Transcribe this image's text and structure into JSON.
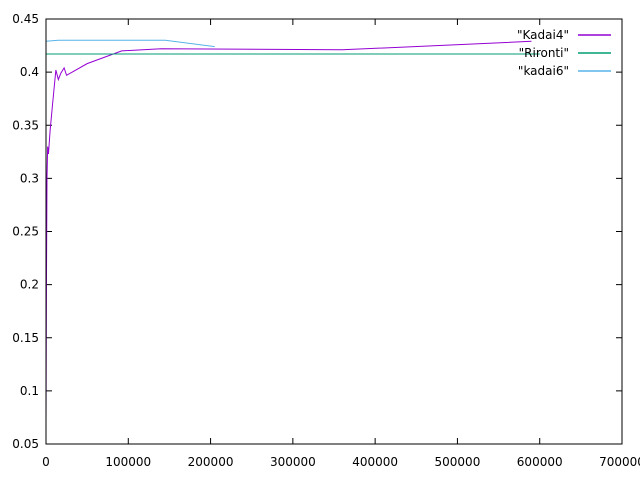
{
  "chart_data": {
    "type": "line",
    "title": "",
    "xlabel": "",
    "ylabel": "",
    "xlim": [
      0,
      700000
    ],
    "ylim": [
      0.05,
      0.45
    ],
    "grid": false,
    "legend_position": "top-right",
    "x_ticks": [
      0,
      100000,
      200000,
      300000,
      400000,
      500000,
      600000,
      700000
    ],
    "x_tick_labels": [
      "0",
      "100000",
      "200000",
      "300000",
      "400000",
      "500000",
      "600000",
      "700000"
    ],
    "y_ticks": [
      0.05,
      0.1,
      0.15,
      0.2,
      0.25,
      0.3,
      0.35,
      0.4,
      0.45
    ],
    "y_tick_labels": [
      "0.05",
      "0.1",
      "0.15",
      "0.2",
      "0.25",
      "0.3",
      "0.35",
      "0.4",
      "0.45"
    ],
    "series": [
      {
        "name": "\"Kadai4\"",
        "color": "#9400d3",
        "points": [
          [
            0,
            0.07
          ],
          [
            600,
            0.21
          ],
          [
            1200,
            0.3
          ],
          [
            2000,
            0.33
          ],
          [
            3000,
            0.323
          ],
          [
            5000,
            0.345
          ],
          [
            8000,
            0.37
          ],
          [
            12000,
            0.402
          ],
          [
            15000,
            0.393
          ],
          [
            18000,
            0.399
          ],
          [
            22000,
            0.404
          ],
          [
            25000,
            0.397
          ],
          [
            50000,
            0.408
          ],
          [
            92000,
            0.42
          ],
          [
            140000,
            0.422
          ],
          [
            360000,
            0.421
          ],
          [
            590000,
            0.429
          ]
        ]
      },
      {
        "name": "\"Rironti\"",
        "color": "#009e73",
        "points": [
          [
            0,
            0.417
          ],
          [
            600000,
            0.417
          ]
        ]
      },
      {
        "name": "\"kadai6\"",
        "color": "#56b4e9",
        "points": [
          [
            0,
            0.429
          ],
          [
            15000,
            0.43
          ],
          [
            145000,
            0.43
          ],
          [
            205000,
            0.424
          ]
        ]
      }
    ]
  }
}
